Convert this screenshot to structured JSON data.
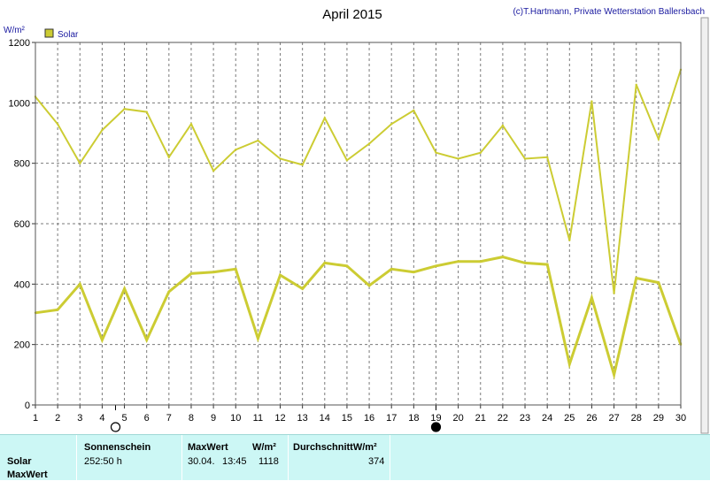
{
  "chart_data": {
    "type": "line",
    "title": "April 2015",
    "credit": "(c)T.Hartmann, Private Wetterstation Ballersbach",
    "ylabel": "W/m²",
    "ylim": [
      0,
      1200
    ],
    "yticks": [
      0,
      200,
      400,
      600,
      800,
      1000,
      1200
    ],
    "x": [
      1,
      2,
      3,
      4,
      5,
      6,
      7,
      8,
      9,
      10,
      11,
      12,
      13,
      14,
      15,
      16,
      17,
      18,
      19,
      20,
      21,
      22,
      23,
      24,
      25,
      26,
      27,
      28,
      29,
      30
    ],
    "legend": "Solar",
    "legend_position": "top-left",
    "grid": true,
    "moon_markers": [
      {
        "day": 4.6,
        "phase": "full-moon"
      },
      {
        "day": 19,
        "phase": "new-moon"
      }
    ],
    "series": [
      {
        "role": "daily-maximum",
        "color": "#cccc33",
        "values": [
          1020,
          930,
          800,
          910,
          980,
          970,
          820,
          930,
          775,
          845,
          875,
          815,
          795,
          950,
          810,
          865,
          930,
          975,
          835,
          815,
          835,
          925,
          815,
          820,
          545,
          1005,
          370,
          1060,
          880,
          1110
        ]
      },
      {
        "role": "daily-average",
        "color": "#cccc33",
        "values": [
          305,
          315,
          400,
          215,
          385,
          215,
          375,
          435,
          440,
          450,
          220,
          430,
          385,
          470,
          460,
          395,
          450,
          440,
          460,
          475,
          475,
          490,
          470,
          465,
          135,
          355,
          100,
          420,
          405,
          200
        ]
      }
    ]
  },
  "footer": {
    "row_label_1": "Solar",
    "row_label_2": "MaxWert",
    "sonnenschein_header": "Sonnenschein",
    "sonnenschein_value": "252:50 h",
    "maxwert_header": "MaxWert",
    "maxwert_unit": "W/m²",
    "maxwert_date": "30.04.",
    "maxwert_time": "13:45",
    "maxwert_value": "1118",
    "durchschnitt_header": "DurchschnittW/m²",
    "durchschnitt_value": "374"
  }
}
